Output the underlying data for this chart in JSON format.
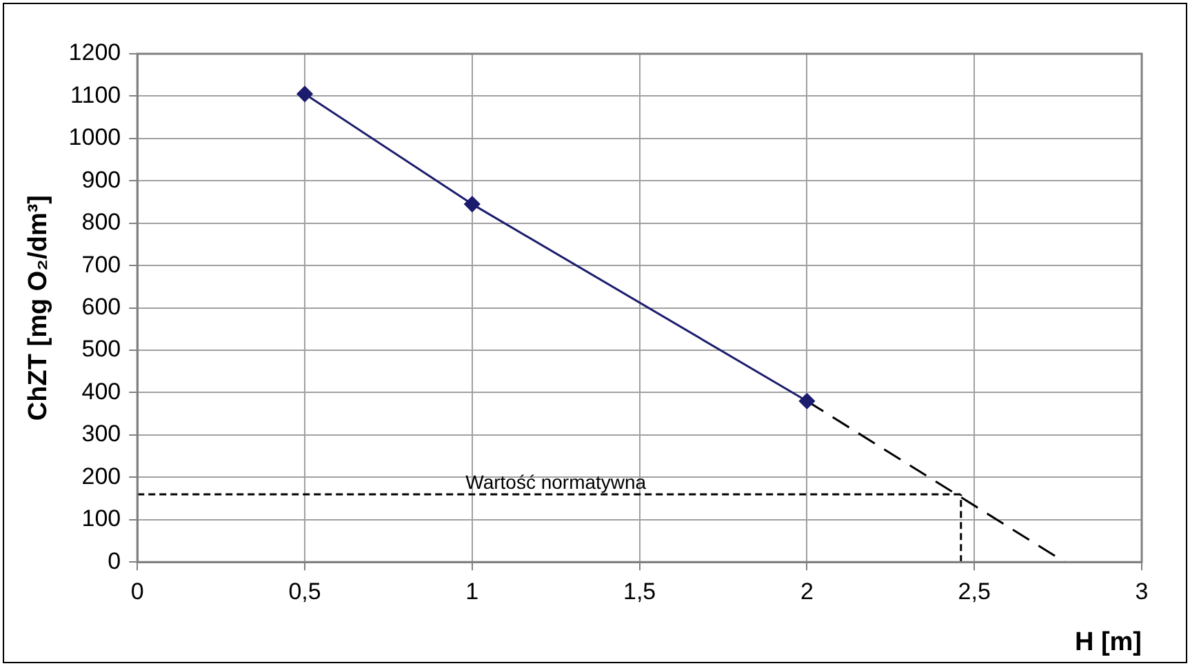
{
  "chart_data": {
    "type": "line",
    "xlabel": "H [m]",
    "ylabel": "ChZT [mg O₂/dm³]",
    "xlim": [
      0,
      3
    ],
    "xticks": [
      0,
      {
        "value": 0.5,
        "label": "0,5"
      },
      1,
      {
        "value": 1.5,
        "label": "1,5"
      },
      2,
      {
        "value": 2.5,
        "label": "2,5"
      },
      3
    ],
    "ylim": [
      0,
      1200
    ],
    "yticks": [
      0,
      100,
      200,
      300,
      400,
      500,
      600,
      700,
      800,
      900,
      1000,
      1100,
      1200
    ],
    "grid": true,
    "legend": false,
    "series": [
      {
        "color": "#1c1c6e",
        "x": [
          0.5,
          1,
          2
        ],
        "values": [
          1105,
          845,
          380
        ],
        "marker": "diamond",
        "line_style": "solid"
      },
      {
        "color": "#000000",
        "x": [
          2,
          2.77
        ],
        "values": [
          380,
          0
        ],
        "marker": "none",
        "line_style": "dashed"
      },
      {
        "color": "#000000",
        "x": [
          0,
          2.46
        ],
        "values": [
          160,
          160
        ],
        "marker": "none",
        "line_style": "dotted"
      },
      {
        "color": "#000000",
        "x": [
          2.46,
          2.46
        ],
        "values": [
          0,
          160
        ],
        "marker": "none",
        "line_style": "dotted"
      }
    ],
    "annotations": [
      {
        "text": "Wartość normatywna",
        "x": 1.25,
        "y": 175
      }
    ]
  }
}
